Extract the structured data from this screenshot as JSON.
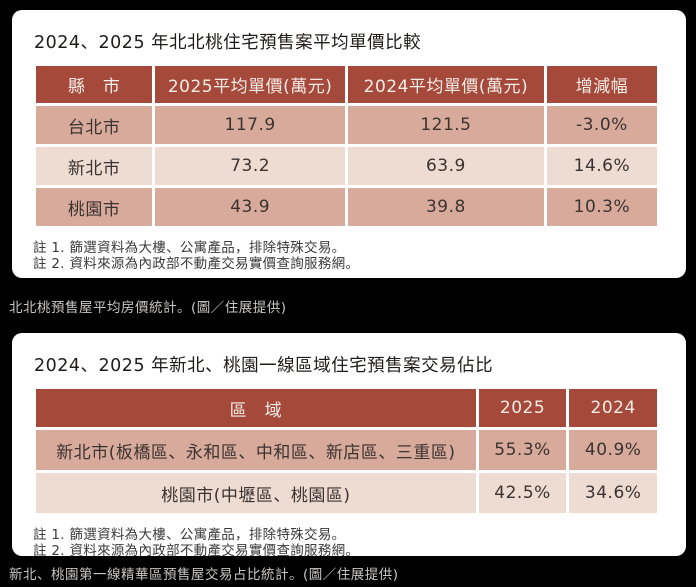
{
  "colors": {
    "page_background": "#000000",
    "card_background": "#ffffff",
    "table_header_background": "#a54a3b",
    "table_header_text": "#f6ece6",
    "row_dark_background": "#d8aa9c",
    "row_light_background": "#eedcd3",
    "body_text": "#3b3330",
    "caption_text": "#c9c7c5"
  },
  "table1": {
    "title": "2024、2025 年北北桃住宅預售案平均單價比較",
    "headers": [
      "縣　市",
      "2025平均單價(萬元)",
      "2024平均單價(萬元)",
      "增減幅"
    ],
    "rows": [
      [
        "台北市",
        "117.9",
        "121.5",
        "-3.0%"
      ],
      [
        "新北市",
        "73.2",
        "63.9",
        "14.6%"
      ],
      [
        "桃園市",
        "43.9",
        "39.8",
        "10.3%"
      ]
    ],
    "note1": "註 1. 篩選資料為大樓、公寓產品，排除特殊交易。",
    "note2": "註 2. 資料來源為內政部不動產交易實價查詢服務網。",
    "caption": "北北桃預售屋平均房價統計。(圖／住展提供)"
  },
  "table2": {
    "title": "2024、2025 年新北、桃園一線區域住宅預售案交易佔比",
    "headers": [
      "區　域",
      "2025",
      "2024"
    ],
    "rows": [
      [
        "新北市(板橋區、永和區、中和區、新店區、三重區)",
        "55.3%",
        "40.9%"
      ],
      [
        "桃園市(中壢區、桃園區)",
        "42.5%",
        "34.6%"
      ]
    ],
    "note1": "註 1. 篩選資料為大樓、公寓產品，排除特殊交易。",
    "note2": "註 2. 資料來源為內政部不動產交易實價查詢服務網。",
    "caption": "新北、桃園第一線精華區預售屋交易占比統計。(圖／住展提供)"
  },
  "chart_data": [
    {
      "type": "table",
      "title": "2024、2025 年北北桃住宅預售案平均單價比較",
      "columns": [
        "縣　市",
        "2025平均單價(萬元)",
        "2024平均單價(萬元)",
        "增減幅"
      ],
      "rows": [
        [
          "台北市",
          117.9,
          121.5,
          "-3.0%"
        ],
        [
          "新北市",
          73.2,
          63.9,
          "14.6%"
        ],
        [
          "桃園市",
          43.9,
          39.8,
          "10.3%"
        ]
      ],
      "notes": [
        "註 1. 篩選資料為大樓、公寓產品，排除特殊交易。",
        "註 2. 資料來源為內政部不動產交易實價查詢服務網。"
      ],
      "caption": "北北桃預售屋平均房價統計。(圖／住展提供)"
    },
    {
      "type": "table",
      "title": "2024、2025 年新北、桃園一線區域住宅預售案交易佔比",
      "columns": [
        "區　域",
        "2025",
        "2024"
      ],
      "rows": [
        [
          "新北市(板橋區、永和區、中和區、新店區、三重區)",
          "55.3%",
          "40.9%"
        ],
        [
          "桃園市(中壢區、桃園區)",
          "42.5%",
          "34.6%"
        ]
      ],
      "notes": [
        "註 1. 篩選資料為大樓、公寓產品，排除特殊交易。",
        "註 2. 資料來源為內政部不動產交易實價查詢服務網。"
      ],
      "caption": "新北、桃園第一線精華區預售屋交易占比統計。(圖／住展提供)"
    }
  ]
}
